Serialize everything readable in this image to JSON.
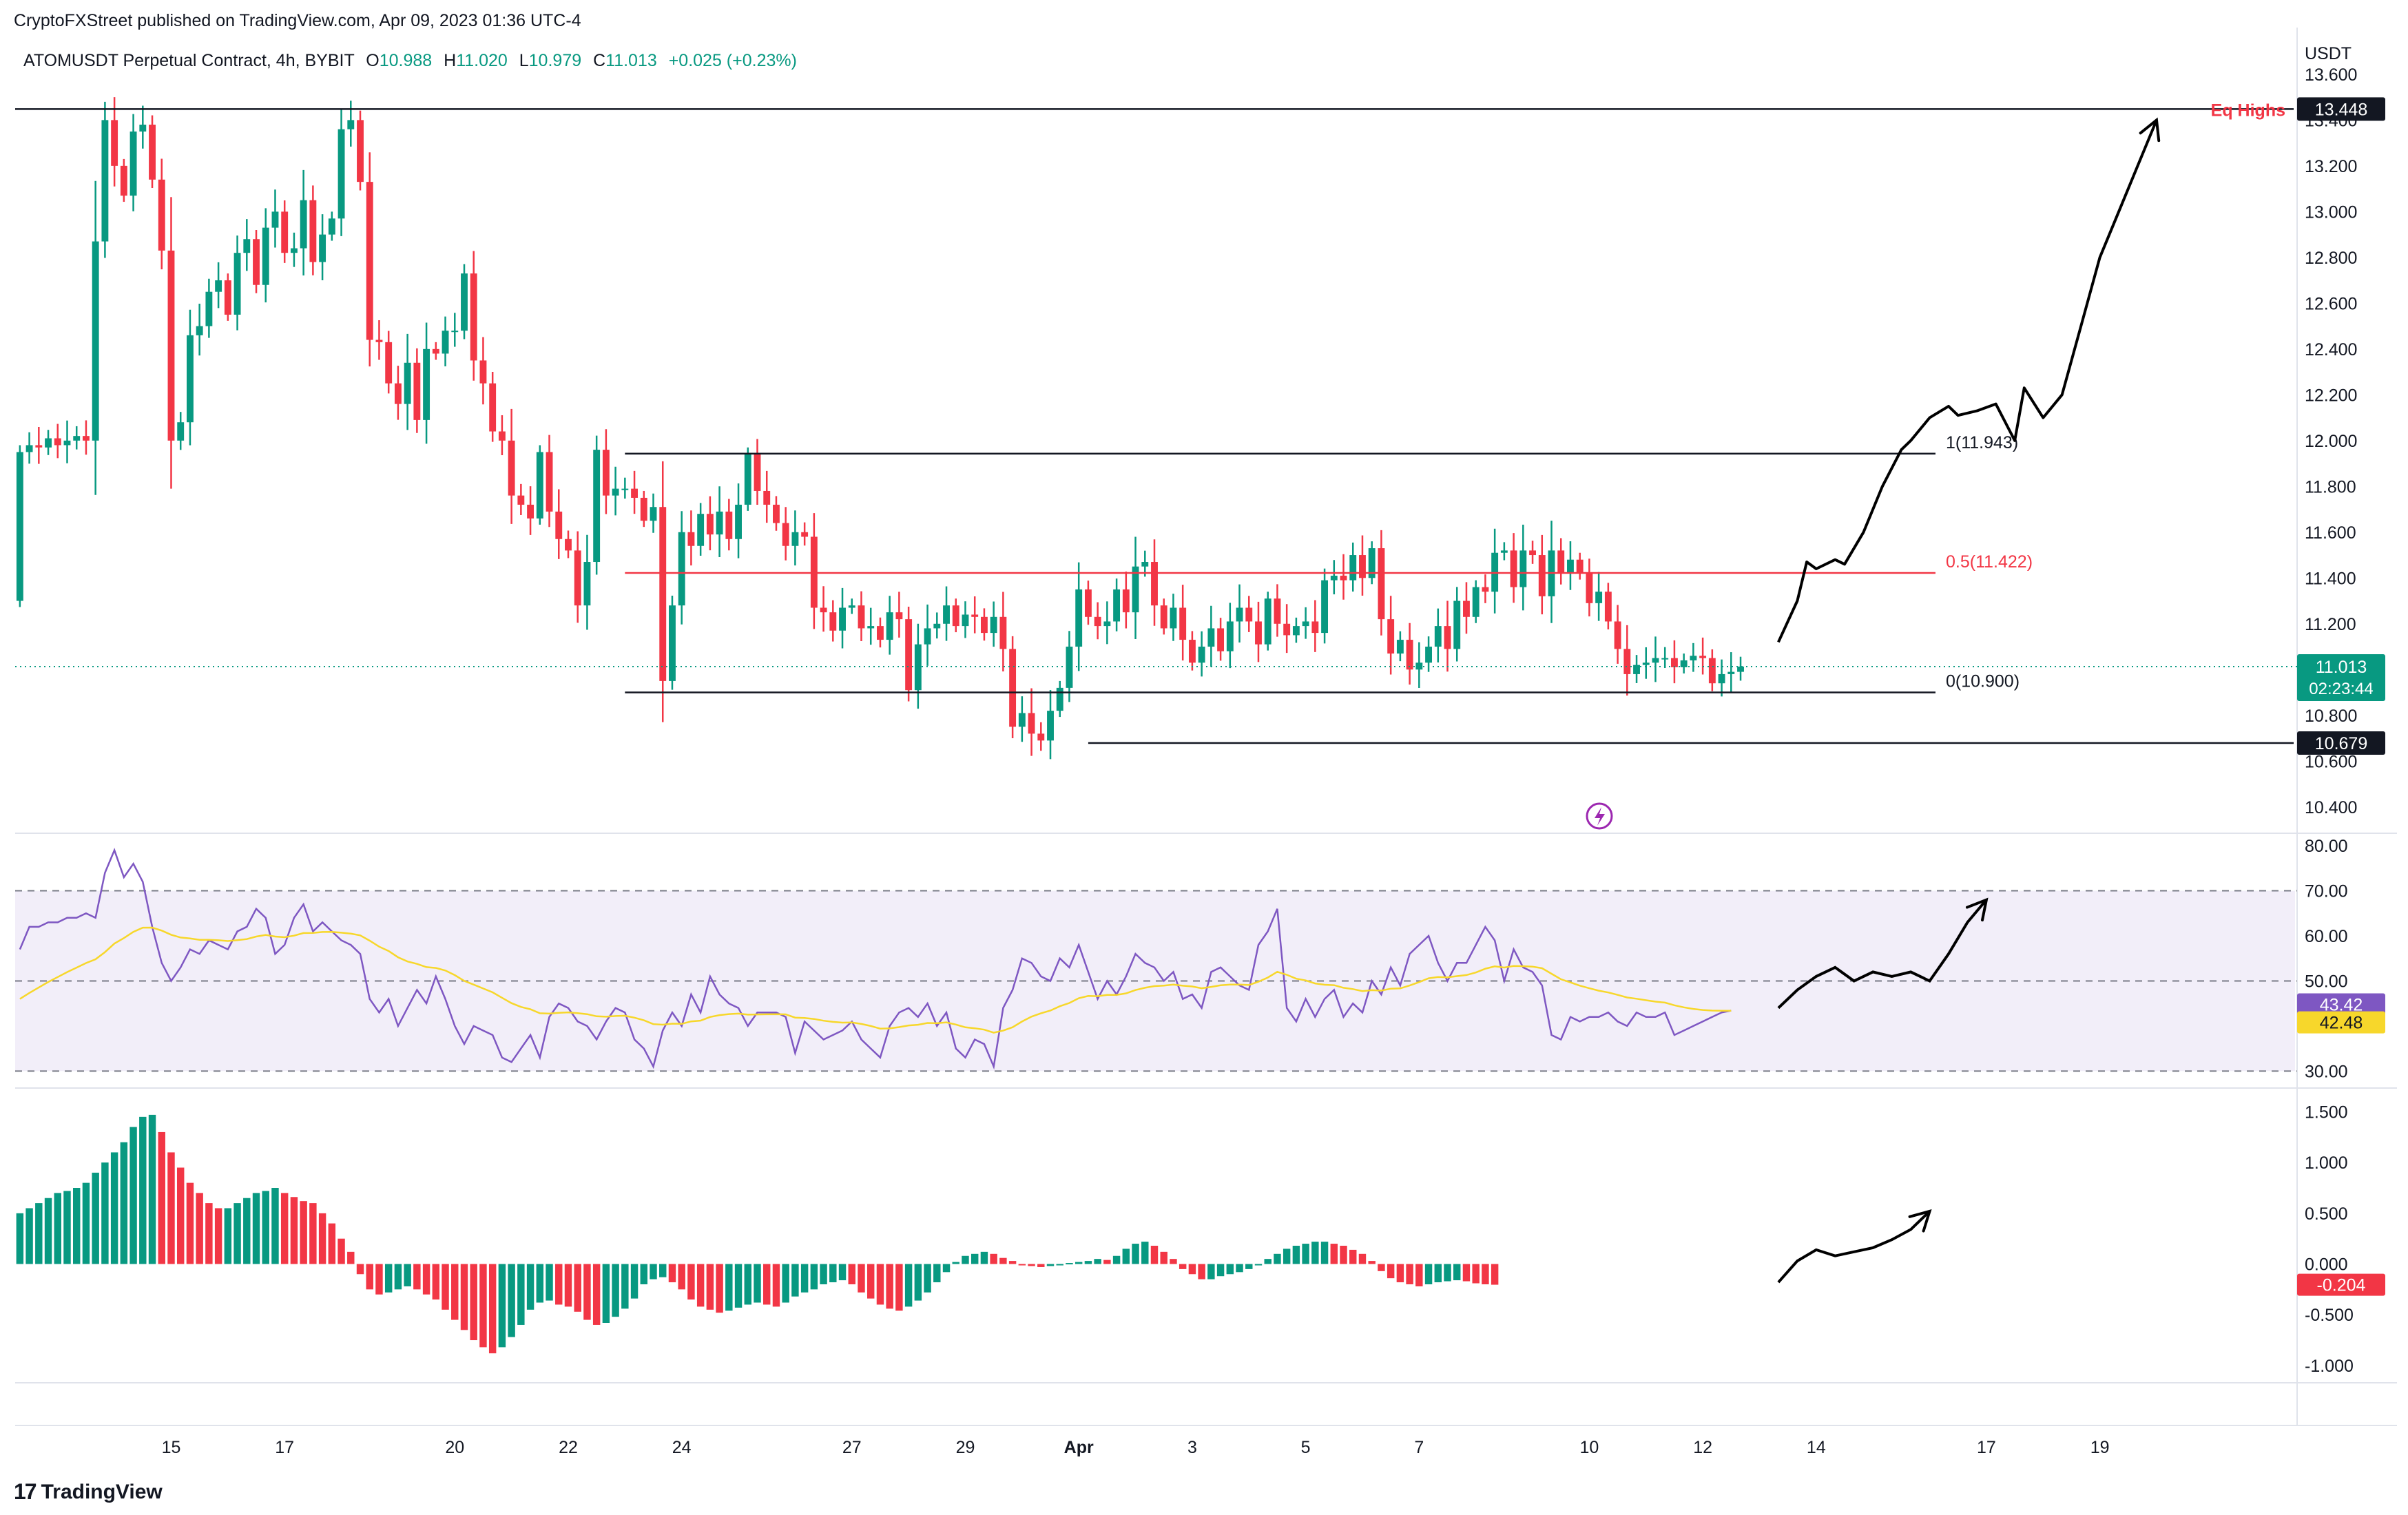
{
  "header": {
    "published": "CryptoFXStreet published on TradingView.com, Apr 09, 2023 01:36 UTC-4",
    "symbol": "ATOMUSDT Perpetual Contract, 4h, BYBIT",
    "ohlc": {
      "o_label": "O",
      "o": "10.988",
      "h_label": "H",
      "h": "11.020",
      "l_label": "L",
      "l": "10.979",
      "c_label": "C",
      "c": "11.013",
      "change": "+0.025 (+0.23%)"
    }
  },
  "footer": {
    "brand": "TradingView",
    "logo": "17"
  },
  "colors": {
    "up": "#089981",
    "down": "#f23645",
    "rsi": "#7e57c2",
    "rsi_ma": "#f7d72b",
    "fib_mid": "#f23645"
  },
  "chart_data": {
    "type": "candlestick",
    "price_axis": {
      "currency": "USDT",
      "ticks": [
        "13.600",
        "13.400",
        "13.200",
        "13.000",
        "12.800",
        "12.600",
        "12.400",
        "12.200",
        "12.000",
        "11.800",
        "11.600",
        "11.400",
        "11.200",
        "11.000",
        "10.800",
        "10.600",
        "10.400"
      ],
      "range": [
        10.3,
        13.75
      ]
    },
    "x_axis": {
      "labels": [
        "15",
        "17",
        "20",
        "22",
        "24",
        "27",
        "29",
        "Apr",
        "3",
        "5",
        "7",
        "10",
        "12",
        "14",
        "17",
        "19"
      ],
      "label_index": [
        16,
        28,
        46,
        58,
        70,
        88,
        100,
        112,
        124,
        136,
        148,
        166,
        178,
        190,
        208,
        220
      ],
      "bars_per_day": 6,
      "total_slots": 241
    },
    "candles_start": {
      "open": 11.3,
      "close": 11.95
    },
    "candles": {
      "close": [
        11.95,
        11.98,
        11.97,
        12.01,
        11.98,
        12.0,
        12.02,
        12.0,
        12.87,
        13.4,
        13.2,
        13.07,
        13.35,
        13.38,
        13.14,
        12.83,
        12.0,
        12.08,
        12.46,
        12.5,
        12.65,
        12.7,
        12.55,
        12.82,
        12.88,
        12.68,
        12.93,
        13.0,
        12.82,
        12.84,
        13.05,
        12.78,
        12.9,
        12.97,
        13.36,
        13.4,
        13.13,
        12.44,
        12.43,
        12.25,
        12.16,
        12.34,
        12.09,
        12.4,
        12.38,
        12.48,
        12.48,
        12.73,
        12.35,
        12.25,
        12.04,
        12.0,
        11.76,
        11.72,
        11.66,
        11.95,
        11.69,
        11.57,
        11.52,
        11.28,
        11.47,
        11.96,
        11.76,
        11.79,
        11.79,
        11.75,
        11.65,
        11.71,
        10.95,
        11.28,
        11.6,
        11.54,
        11.68,
        11.59,
        11.69,
        11.57,
        11.72,
        11.94,
        11.78,
        11.72,
        11.64,
        11.54,
        11.6,
        11.58,
        11.27,
        11.25,
        11.17,
        11.27,
        11.28,
        11.18,
        11.19,
        11.13,
        11.25,
        11.22,
        10.91,
        11.11,
        11.18,
        11.2,
        11.28,
        11.19,
        11.24,
        11.23,
        11.16,
        11.23,
        11.09,
        10.75,
        10.81,
        10.72,
        10.69,
        10.82,
        10.92,
        11.1,
        11.35,
        11.23,
        11.19,
        11.21,
        11.35,
        11.25,
        11.45,
        11.47,
        11.28,
        11.18,
        11.27,
        11.13,
        11.03,
        11.1,
        11.18,
        11.08,
        11.21,
        11.27,
        11.21,
        11.11,
        11.31,
        11.2,
        11.15,
        11.19,
        11.21,
        11.16,
        11.39,
        11.41,
        11.39,
        11.5,
        11.4,
        11.53,
        11.22,
        11.07,
        11.13,
        11.0,
        11.03,
        11.1,
        11.19,
        11.09,
        11.3,
        11.23,
        11.36,
        11.34,
        11.51,
        11.52,
        11.36,
        11.52,
        11.5,
        11.32,
        11.52,
        11.42,
        11.48,
        11.42,
        11.29,
        11.34,
        11.21,
        11.09,
        10.98,
        11.02,
        11.03,
        11.05,
        11.05,
        11.01,
        11.04,
        11.06,
        11.05,
        10.94,
        10.98,
        10.99,
        11.013
      ]
    },
    "fib": [
      {
        "label": "1(11.943)",
        "price": 11.943
      },
      {
        "label": "0.5(11.422)",
        "price": 11.422
      },
      {
        "label": "0(10.900)",
        "price": 10.9
      }
    ],
    "levels": [
      {
        "label": "Eq Highs",
        "price": 13.448,
        "tag": "13.448"
      },
      {
        "label": "",
        "price": 10.679,
        "tag": "10.679"
      }
    ],
    "last_price": {
      "value": "11.013",
      "countdown": "02:23:44",
      "price": 11.013
    },
    "projection_path": [
      [
        186,
        11.12
      ],
      [
        188,
        11.3
      ],
      [
        189,
        11.47
      ],
      [
        190,
        11.44
      ],
      [
        192,
        11.48
      ],
      [
        193,
        11.46
      ],
      [
        195,
        11.6
      ],
      [
        197,
        11.8
      ],
      [
        199,
        11.96
      ],
      [
        200,
        12.0
      ],
      [
        202,
        12.1
      ],
      [
        204,
        12.15
      ],
      [
        205,
        12.11
      ],
      [
        207,
        12.13
      ],
      [
        209,
        12.16
      ],
      [
        211,
        12.0
      ],
      [
        212,
        12.23
      ],
      [
        214,
        12.1
      ],
      [
        216,
        12.2
      ],
      [
        218,
        12.5
      ],
      [
        220,
        12.8
      ],
      [
        222,
        13.0
      ],
      [
        224,
        13.2
      ],
      [
        226,
        13.4
      ]
    ],
    "rsi": {
      "axis_ticks": [
        "80.00",
        "70.00",
        "60.00",
        "50.00",
        "40.00",
        "30.00"
      ],
      "range": [
        27,
        82
      ],
      "band": [
        30,
        70
      ],
      "mid": 50,
      "value_tag": "43.42",
      "ma_tag": "42.48",
      "values": [
        57,
        62,
        62,
        63,
        63,
        64,
        64,
        65,
        64,
        74,
        79,
        73,
        76,
        72,
        62,
        54,
        50,
        53,
        57,
        56,
        59,
        58,
        57,
        61,
        62,
        66,
        64,
        56,
        58,
        64,
        67,
        61,
        63,
        61,
        59,
        58,
        56,
        46,
        43,
        46,
        40,
        44,
        48,
        45,
        51,
        46,
        40,
        36,
        40,
        39,
        38,
        33,
        32,
        35,
        38,
        33,
        42,
        45,
        44,
        41,
        40,
        37,
        41,
        44,
        43,
        37,
        35,
        31,
        39,
        43,
        40,
        47,
        43,
        51,
        47,
        45,
        44,
        40,
        43,
        43,
        43,
        42,
        34,
        41,
        39,
        37,
        38,
        39,
        41,
        37,
        35,
        33,
        40,
        43,
        44,
        42,
        45,
        40,
        43,
        35,
        33,
        37,
        36,
        31,
        44,
        48,
        55,
        54,
        51,
        50,
        55,
        53,
        58,
        52,
        46,
        50,
        47,
        51,
        56,
        54,
        53,
        50,
        52,
        46,
        47,
        44,
        52,
        53,
        51,
        49,
        48,
        58,
        61,
        66,
        44,
        41,
        46,
        42,
        46,
        48,
        42,
        45,
        43,
        50,
        47,
        53,
        49,
        56,
        58,
        60,
        54,
        50,
        54,
        54,
        58,
        62,
        59,
        50,
        57,
        53,
        52,
        49,
        38,
        37,
        42,
        41,
        42,
        42,
        43,
        41,
        40,
        43,
        42,
        42,
        43,
        38,
        39,
        40,
        41,
        42,
        43,
        43.42
      ],
      "ma_start": 45,
      "projection_path": [
        [
          186,
          44
        ],
        [
          188,
          48
        ],
        [
          190,
          51
        ],
        [
          192,
          53
        ],
        [
          194,
          50
        ],
        [
          196,
          52
        ],
        [
          198,
          51
        ],
        [
          200,
          52
        ],
        [
          202,
          50
        ],
        [
          204,
          56
        ],
        [
          206,
          63
        ],
        [
          208,
          68
        ]
      ]
    },
    "histogram": {
      "axis_ticks": [
        "1.500",
        "1.000",
        "0.500",
        "0.000",
        "-0.500",
        "-1.000"
      ],
      "range": [
        -1.15,
        1.7
      ],
      "value_tag": "-0.204",
      "values": [
        0.5,
        0.55,
        0.6,
        0.65,
        0.7,
        0.72,
        0.75,
        0.8,
        0.9,
        1.0,
        1.1,
        1.2,
        1.35,
        1.45,
        1.47,
        1.3,
        1.1,
        0.95,
        0.8,
        0.7,
        0.6,
        0.55,
        0.55,
        0.6,
        0.65,
        0.7,
        0.72,
        0.75,
        0.7,
        0.66,
        0.62,
        0.6,
        0.5,
        0.4,
        0.25,
        0.12,
        -0.1,
        -0.25,
        -0.3,
        -0.28,
        -0.25,
        -0.22,
        -0.25,
        -0.3,
        -0.35,
        -0.45,
        -0.55,
        -0.65,
        -0.75,
        -0.82,
        -0.88,
        -0.82,
        -0.72,
        -0.6,
        -0.45,
        -0.38,
        -0.36,
        -0.4,
        -0.42,
        -0.47,
        -0.55,
        -0.6,
        -0.58,
        -0.52,
        -0.44,
        -0.34,
        -0.2,
        -0.15,
        -0.13,
        -0.18,
        -0.25,
        -0.35,
        -0.42,
        -0.45,
        -0.48,
        -0.46,
        -0.43,
        -0.4,
        -0.38,
        -0.4,
        -0.42,
        -0.38,
        -0.32,
        -0.28,
        -0.25,
        -0.2,
        -0.18,
        -0.16,
        -0.2,
        -0.28,
        -0.34,
        -0.4,
        -0.44,
        -0.46,
        -0.42,
        -0.36,
        -0.28,
        -0.18,
        -0.08,
        0.02,
        0.08,
        0.1,
        0.12,
        0.1,
        0.06,
        0.03,
        0.0,
        -0.02,
        -0.03,
        -0.02,
        0.0,
        0.01,
        0.02,
        0.03,
        0.05,
        0.04,
        0.08,
        0.15,
        0.2,
        0.22,
        0.18,
        0.12,
        0.05,
        -0.05,
        -0.1,
        -0.15,
        -0.15,
        -0.12,
        -0.1,
        -0.08,
        -0.05,
        0.0,
        0.05,
        0.1,
        0.15,
        0.18,
        0.2,
        0.22,
        0.22,
        0.2,
        0.18,
        0.14,
        0.1,
        0.03,
        -0.07,
        -0.14,
        -0.18,
        -0.2,
        -0.22,
        -0.2,
        -0.18,
        -0.17,
        -0.16,
        -0.17,
        -0.19,
        -0.2,
        -0.204
      ],
      "projection_path": [
        [
          186,
          -0.18
        ],
        [
          188,
          0.03
        ],
        [
          190,
          0.14
        ],
        [
          192,
          0.08
        ],
        [
          194,
          0.12
        ],
        [
          196,
          0.16
        ],
        [
          198,
          0.24
        ],
        [
          200,
          0.34
        ],
        [
          202,
          0.52
        ]
      ]
    }
  }
}
